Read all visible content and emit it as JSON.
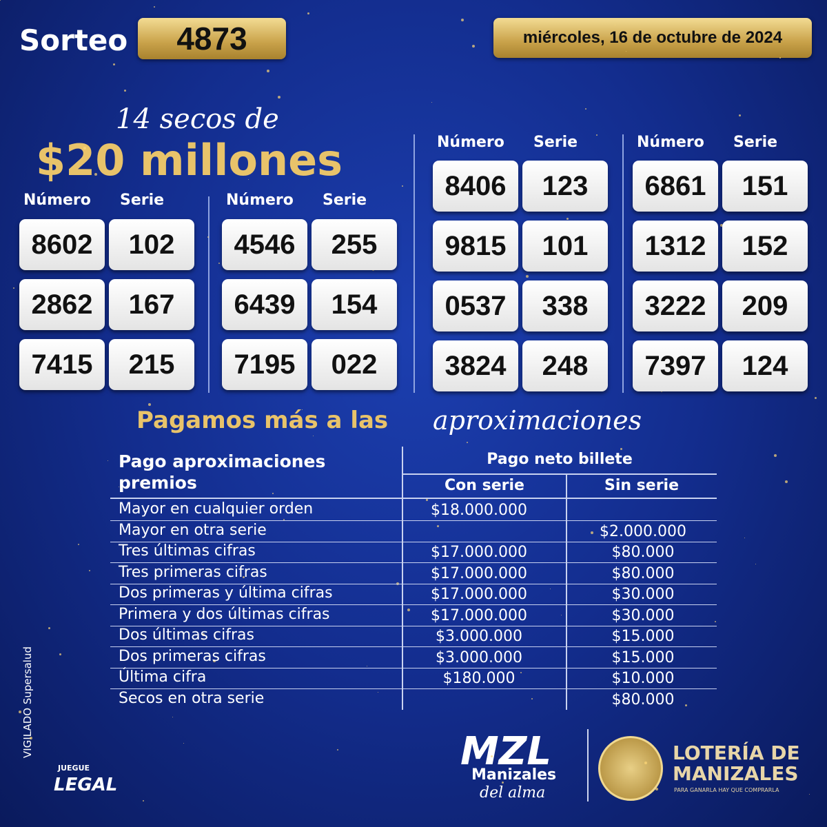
{
  "header": {
    "draw_label": "Sorteo",
    "draw_number": "4873",
    "date": "miércoles, 16 de octubre de 2024"
  },
  "promo": {
    "line1": "14 secos de",
    "line2": "$20 millones"
  },
  "groups": [
    {
      "number_header": "Número",
      "series_header": "Serie",
      "rows": [
        [
          "8602",
          "102"
        ],
        [
          "2862",
          "167"
        ],
        [
          "7415",
          "215"
        ]
      ]
    },
    {
      "number_header": "Número",
      "series_header": "Serie",
      "rows": [
        [
          "4546",
          "255"
        ],
        [
          "6439",
          "154"
        ],
        [
          "7195",
          "022"
        ]
      ]
    },
    {
      "number_header": "Número",
      "series_header": "Serie",
      "rows": [
        [
          "8406",
          "123"
        ],
        [
          "9815",
          "101"
        ],
        [
          "0537",
          "338"
        ],
        [
          "3824",
          "248"
        ]
      ]
    },
    {
      "number_header": "Número",
      "series_header": "Serie",
      "rows": [
        [
          "6861",
          "151"
        ],
        [
          "1312",
          "152"
        ],
        [
          "3222",
          "209"
        ],
        [
          "7397",
          "124"
        ]
      ]
    }
  ],
  "subtitle": {
    "text": "Pagamos más a las",
    "script": "aproximaciones"
  },
  "table": {
    "header": {
      "prize": "Pago aproximaciones premios",
      "net": "Pago neto billete",
      "with_series": "Con serie",
      "without_series": "Sin serie"
    },
    "rows": [
      [
        "Mayor en cualquier orden",
        "$18.000.000",
        null
      ],
      [
        "Mayor en otra serie",
        null,
        "$2.000.000"
      ],
      [
        "Tres últimas cifras",
        "$17.000.000",
        "$80.000"
      ],
      [
        "Tres primeras cifras",
        "$17.000.000",
        "$80.000"
      ],
      [
        "Dos primeras y última cifras",
        "$17.000.000",
        "$30.000"
      ],
      [
        "Primera y dos últimas cifras",
        "$17.000.000",
        "$30.000"
      ],
      [
        "Dos últimas cifras",
        "$3.000.000",
        "$15.000"
      ],
      [
        "Dos primeras cifras",
        "$3.000.000",
        "$15.000"
      ],
      [
        "Última cifra",
        "$180.000",
        "$10.000"
      ],
      [
        "Secos en otra serie",
        null,
        "$80.000"
      ]
    ]
  },
  "footer": {
    "supervisor": "VIGILADO Supersalud",
    "legal_top": "JUEGUE",
    "legal": "LEGAL",
    "brand": "MZL",
    "brand_city": "Manizales",
    "brand_tag": "del alma",
    "lottery_top": "LOTERÍA DE",
    "lottery_name": "MANIZALES",
    "lottery_slogan": "PARA GANARLA HAY QUE COMPRARLA"
  }
}
